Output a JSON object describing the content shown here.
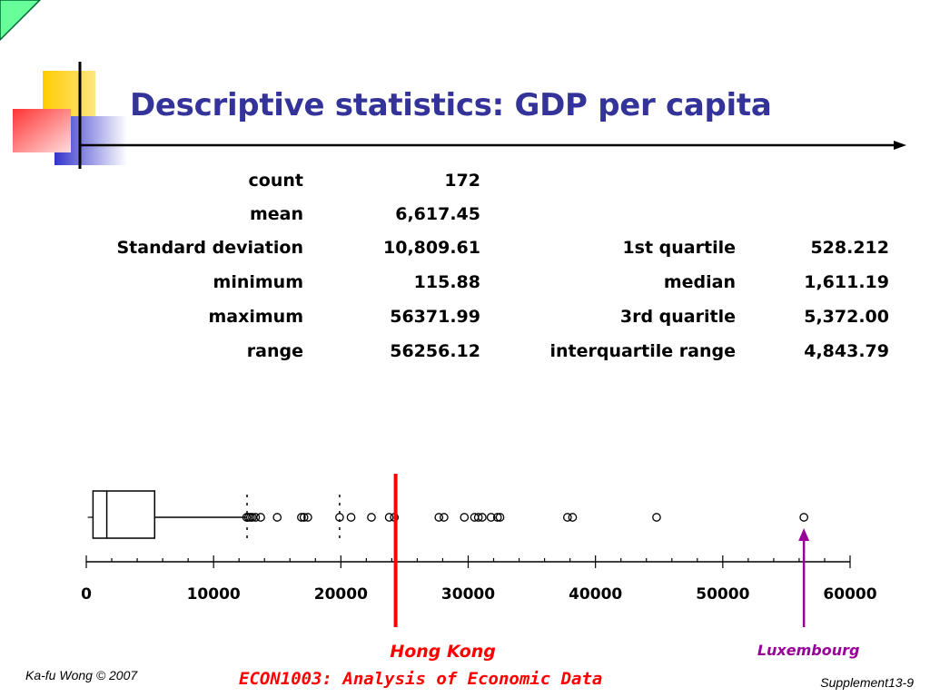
{
  "slide": {
    "title": "Descriptive statistics: GDP per capita",
    "footer_left": "Ka-fu Wong © 2007",
    "footer_center": "ECON1003: Analysis of Economic Data",
    "footer_right": "Supplement13-9"
  },
  "stats": {
    "left": [
      {
        "label": "count",
        "value": "172"
      },
      {
        "label": "mean",
        "value": "6,617.45"
      },
      {
        "label": "Standard deviation",
        "value": "10,809.61"
      },
      {
        "label": "minimum",
        "value": "115.88"
      },
      {
        "label": "maximum",
        "value": "56371.99"
      },
      {
        "label": "range",
        "value": "56256.12"
      }
    ],
    "right": [
      {
        "label": "1st quartile",
        "value": "528.212"
      },
      {
        "label": "median",
        "value": "1,611.19"
      },
      {
        "label": "3rd quaritle",
        "value": "5,372.00"
      },
      {
        "label": "interquartile range",
        "value": "4,843.79"
      }
    ]
  },
  "chart_data": {
    "type": "boxplot",
    "title": "",
    "xlabel": "",
    "ylabel": "",
    "xlim": [
      0,
      60000
    ],
    "xticks": [
      0,
      10000,
      20000,
      30000,
      40000,
      50000,
      60000
    ],
    "box": {
      "min": 115.88,
      "q1": 528.212,
      "median": 1611.19,
      "q3": 5372.0,
      "whisker_high": 12600,
      "max": 56371.99
    },
    "fences": [
      12630,
      19900
    ],
    "outliers": [
      12600,
      12750,
      12900,
      13050,
      13300,
      13700,
      15000,
      16900,
      17100,
      17400,
      19900,
      20800,
      22400,
      23800,
      24200,
      27700,
      28100,
      29700,
      30500,
      30800,
      31100,
      31800,
      32300,
      32500,
      37800,
      38200,
      44800,
      56371.99
    ],
    "annotations": [
      {
        "label": "Hong Kong",
        "x": 24300,
        "color": "#ff0000"
      },
      {
        "label": "Luxembourg",
        "x": 56371.99,
        "color": "#990099"
      }
    ],
    "colors": {
      "box": "#000000",
      "hong_kong_line": "#ff0000",
      "luxembourg_arrow": "#990099"
    }
  }
}
